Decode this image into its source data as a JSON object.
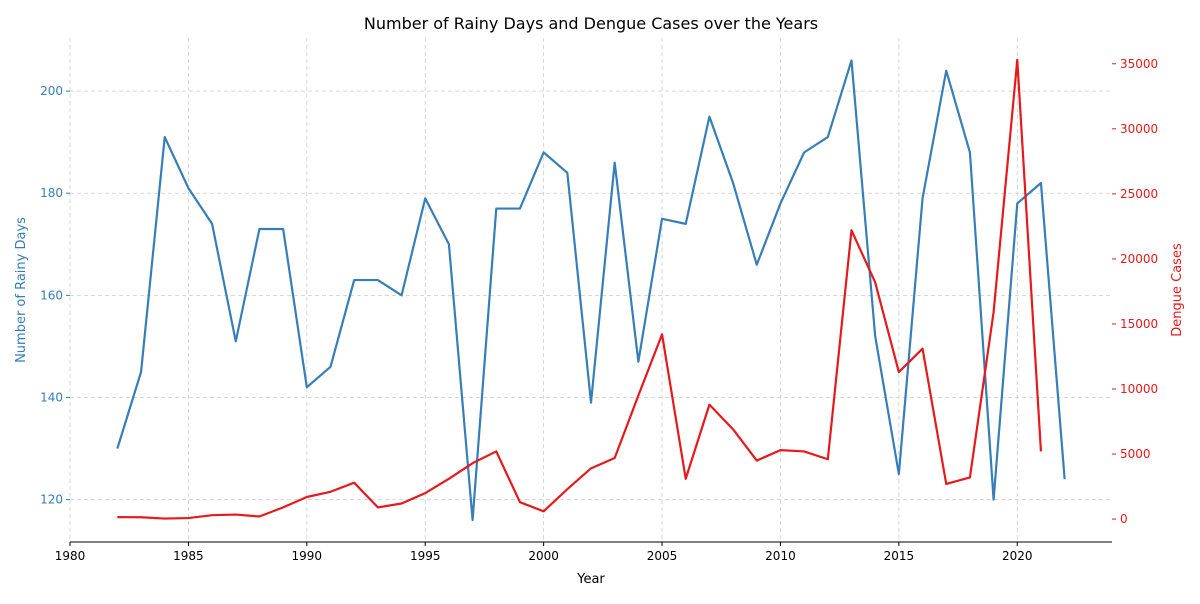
{
  "chart_data": {
    "type": "line",
    "title": "Number of Rainy Days and Dengue Cases over the Years",
    "xlabel": "Year",
    "ylabel_left": "Number of Rainy Days",
    "ylabel_right": "Dengue Cases",
    "xlim": [
      1980,
      2024
    ],
    "ylim_left": [
      111.7,
      210.4
    ],
    "ylim_right": [
      -1760,
      36980
    ],
    "x_ticks": [
      1980,
      1985,
      1990,
      1995,
      2000,
      2005,
      2010,
      2015,
      2020
    ],
    "y_ticks_left": [
      120,
      140,
      160,
      180,
      200
    ],
    "y_ticks_right": [
      0,
      5000,
      10000,
      15000,
      20000,
      25000,
      30000,
      35000
    ],
    "grid": true,
    "colors": {
      "rainy": "#377eb8",
      "dengue": "#e41a1c",
      "grid": "#cccccc"
    },
    "series": [
      {
        "name": "Number of Rainy Days",
        "axis": "left",
        "x": [
          1982,
          1983,
          1984,
          1985,
          1986,
          1987,
          1988,
          1989,
          1990,
          1991,
          1992,
          1993,
          1994,
          1995,
          1996,
          1997,
          1998,
          1999,
          2000,
          2001,
          2002,
          2003,
          2004,
          2005,
          2006,
          2007,
          2008,
          2009,
          2010,
          2011,
          2012,
          2013,
          2014,
          2015,
          2016,
          2017,
          2018,
          2019,
          2020,
          2021,
          2022
        ],
        "values": [
          130,
          145,
          191,
          181,
          174,
          151,
          173,
          173,
          142,
          146,
          163,
          163,
          160,
          179,
          170,
          116,
          177,
          177,
          188,
          184,
          139,
          186,
          147,
          175,
          174,
          195,
          182,
          166,
          178,
          188,
          191,
          206,
          152,
          125,
          179,
          204,
          188,
          120,
          178,
          182,
          124
        ]
      },
      {
        "name": "Dengue Cases",
        "axis": "right",
        "x": [
          1982,
          1983,
          1984,
          1985,
          1986,
          1987,
          1988,
          1989,
          1990,
          1991,
          1992,
          1993,
          1994,
          1995,
          1996,
          1997,
          1998,
          1999,
          2000,
          2001,
          2002,
          2003,
          2004,
          2005,
          2006,
          2007,
          2008,
          2009,
          2010,
          2011,
          2012,
          2013,
          2014,
          2015,
          2016,
          2017,
          2018,
          2019,
          2020,
          2021
        ],
        "values": [
          150,
          140,
          40,
          80,
          300,
          350,
          200,
          900,
          1700,
          2100,
          2800,
          900,
          1200,
          2000,
          3100,
          4300,
          5200,
          1300,
          600,
          2300,
          3900,
          4700,
          9500,
          14200,
          3100,
          8800,
          6900,
          4500,
          5300,
          5200,
          4600,
          22200,
          18200,
          11300,
          13100,
          2700,
          3200,
          15900,
          35300,
          5200
        ]
      }
    ]
  }
}
